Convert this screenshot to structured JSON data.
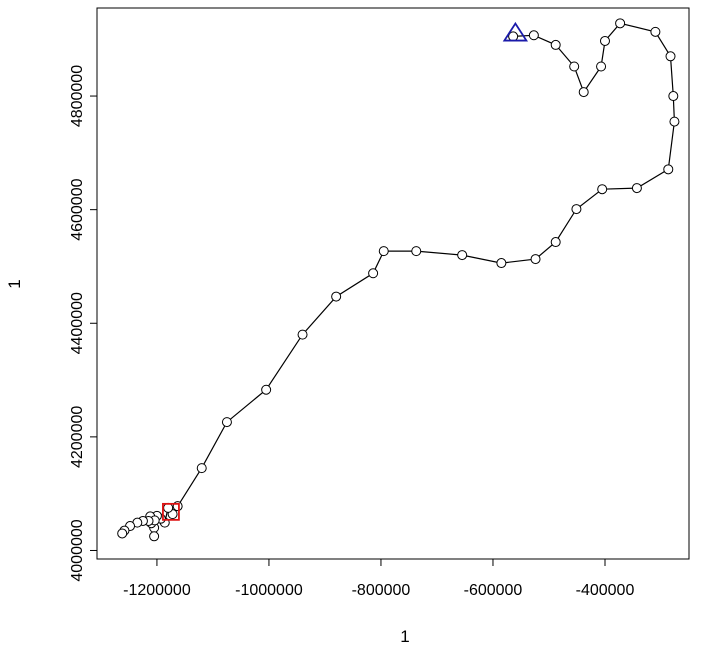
{
  "chart_data": {
    "type": "line",
    "title": "",
    "xlabel": "1",
    "ylabel": "1",
    "xlim": [
      -1307000,
      -250000
    ],
    "ylim": [
      3985000,
      4955000
    ],
    "xticks": [
      -1200000,
      -1000000,
      -800000,
      -600000,
      -400000
    ],
    "xtick_labels": [
      "-1200000",
      "-1000000",
      "-800000",
      "-600000",
      "-400000"
    ],
    "yticks": [
      4000000,
      4200000,
      4400000,
      4600000,
      4800000
    ],
    "ytick_labels": [
      "4000000",
      "4200000",
      "4400000",
      "4600000",
      "4800000"
    ],
    "series": [
      {
        "marker": "open-circle",
        "line_color": "#000000",
        "x": [
          -564000,
          -527000,
          -488000,
          -455000,
          -438000,
          -407000,
          -400000,
          -373000,
          -310000,
          -283000,
          -278000,
          -276000,
          -287000,
          -343000,
          -405000,
          -451000,
          -488000,
          -524000,
          -585000,
          -655000,
          -737000,
          -795000,
          -814000,
          -880000,
          -940000,
          -1005000,
          -1075000,
          -1120000,
          -1163000,
          -1172000,
          -1180000,
          -1186000,
          -1193000,
          -1200000,
          -1205000,
          -1210000,
          -1205000,
          -1212000,
          -1204000,
          -1215000,
          -1225000,
          -1235000,
          -1248000,
          -1258000,
          -1262000
        ],
        "y": [
          4905000,
          4907000,
          4890000,
          4852000,
          4807000,
          4852000,
          4897000,
          4928000,
          4913000,
          4870000,
          4800000,
          4755000,
          4671000,
          4638000,
          4636000,
          4601000,
          4543000,
          4513000,
          4506000,
          4520000,
          4527000,
          4527000,
          4488000,
          4447000,
          4380000,
          4283000,
          4226000,
          4145000,
          4078000,
          4064000,
          4075000,
          4049000,
          4056000,
          4061000,
          4040000,
          4048000,
          4025000,
          4060000,
          4053000,
          4052000,
          4052000,
          4049000,
          4043000,
          4035000,
          4030000
        ]
      }
    ],
    "start_marker": {
      "shape": "triangle",
      "color": "#1a1aaa",
      "x": -560000,
      "y": 4910000
    },
    "end_marker": {
      "shape": "square",
      "color": "#dd1111",
      "x": -1175000,
      "y": 4068000
    },
    "grid": false,
    "legend": "none"
  }
}
